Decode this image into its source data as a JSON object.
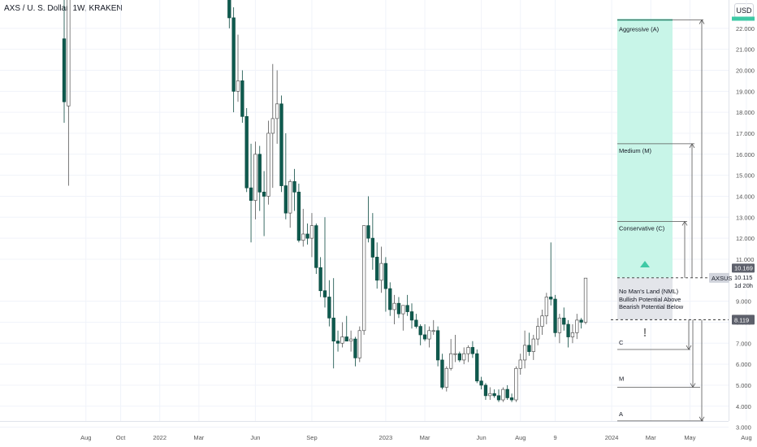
{
  "header": {
    "title": "AXS / U. S. Dollar, 1W, KRAKEN",
    "currency_button": "USD"
  },
  "chart_data": {
    "type": "candlestick",
    "symbol": "AXSUSD",
    "ylim": [
      3.0,
      22.5
    ],
    "y_ticks": [
      3,
      4,
      5,
      6,
      7,
      8,
      9,
      11,
      12,
      13,
      14,
      15,
      16,
      17,
      18,
      19,
      20,
      21,
      22
    ],
    "x_labels": [
      {
        "label": "Aug",
        "week": 2
      },
      {
        "label": "Oct",
        "week": 10
      },
      {
        "label": "2022",
        "week": 19
      },
      {
        "label": "Mar",
        "week": 28
      },
      {
        "label": "Jun",
        "week": 41
      },
      {
        "label": "Sep",
        "week": 54
      },
      {
        "label": "2023",
        "week": 71
      },
      {
        "label": "Mar",
        "week": 80
      },
      {
        "label": "Jun",
        "week": 93
      },
      {
        "label": "Aug",
        "week": 102
      },
      {
        "label": "9",
        "week": 110
      },
      {
        "label": "2024",
        "week": 123
      },
      {
        "label": "Mar",
        "week": 132
      },
      {
        "label": "May",
        "week": 141
      },
      {
        "label": "Aug",
        "week": 154
      }
    ],
    "candles": [
      {
        "w": -3,
        "o": 21.5,
        "h": 24,
        "l": 17.5,
        "c": 18.5
      },
      {
        "w": -2,
        "o": 18.3,
        "h": 25,
        "l": 14.5,
        "c": 24
      },
      {
        "w": 35,
        "o": 24,
        "h": 25,
        "l": 22,
        "c": 22.5
      },
      {
        "w": 36,
        "o": 22.5,
        "h": 23,
        "l": 18,
        "c": 19
      },
      {
        "w": 37,
        "o": 19,
        "h": 21.7,
        "l": 18.5,
        "c": 19.5
      },
      {
        "w": 38,
        "o": 19.5,
        "h": 20,
        "l": 17.5,
        "c": 17.8
      },
      {
        "w": 39,
        "o": 17.8,
        "h": 18.2,
        "l": 14.2,
        "c": 14.4
      },
      {
        "w": 40,
        "o": 14.4,
        "h": 16.5,
        "l": 11.8,
        "c": 13.8
      },
      {
        "w": 41,
        "o": 13.8,
        "h": 16.6,
        "l": 12.9,
        "c": 16
      },
      {
        "w": 42,
        "o": 16,
        "h": 16.4,
        "l": 13.3,
        "c": 14.2
      },
      {
        "w": 43,
        "o": 14.2,
        "h": 15.2,
        "l": 12.1,
        "c": 14
      },
      {
        "w": 44,
        "o": 14,
        "h": 17.6,
        "l": 13.6,
        "c": 17
      },
      {
        "w": 45,
        "o": 17,
        "h": 20.3,
        "l": 14.4,
        "c": 17.7
      },
      {
        "w": 46,
        "o": 17.7,
        "h": 20,
        "l": 16.5,
        "c": 18.4
      },
      {
        "w": 47,
        "o": 18.4,
        "h": 18.8,
        "l": 14.2,
        "c": 14.5
      },
      {
        "w": 48,
        "o": 14.5,
        "h": 17,
        "l": 12.9,
        "c": 13.2
      },
      {
        "w": 49,
        "o": 13.2,
        "h": 14.8,
        "l": 12.5,
        "c": 14.7
      },
      {
        "w": 50,
        "o": 14.7,
        "h": 15.3,
        "l": 13.3,
        "c": 14.2
      },
      {
        "w": 51,
        "o": 14.2,
        "h": 14.6,
        "l": 11.8,
        "c": 11.9
      },
      {
        "w": 52,
        "o": 11.9,
        "h": 13.4,
        "l": 11.6,
        "c": 12.2
      },
      {
        "w": 53,
        "o": 12.2,
        "h": 12.7,
        "l": 11.7,
        "c": 12
      },
      {
        "w": 54,
        "o": 12,
        "h": 13.2,
        "l": 11.1,
        "c": 12.6
      },
      {
        "w": 55,
        "o": 12.6,
        "h": 12.7,
        "l": 10.3,
        "c": 10.6
      },
      {
        "w": 56,
        "o": 10.6,
        "h": 11.1,
        "l": 9.2,
        "c": 9.5
      },
      {
        "w": 57,
        "o": 9.5,
        "h": 13,
        "l": 8.7,
        "c": 9.2
      },
      {
        "w": 58,
        "o": 9.2,
        "h": 10,
        "l": 7.8,
        "c": 8.2
      },
      {
        "w": 59,
        "o": 8.2,
        "h": 10.1,
        "l": 5.8,
        "c": 7.1
      },
      {
        "w": 60,
        "o": 7.1,
        "h": 7.6,
        "l": 6.6,
        "c": 7.0
      },
      {
        "w": 61,
        "o": 7.0,
        "h": 8,
        "l": 6.8,
        "c": 7.3
      },
      {
        "w": 62,
        "o": 7.3,
        "h": 8.3,
        "l": 7.1,
        "c": 7.1
      },
      {
        "w": 63,
        "o": 7.1,
        "h": 7.6,
        "l": 6.6,
        "c": 7.2
      },
      {
        "w": 64,
        "o": 7.2,
        "h": 7.3,
        "l": 5.9,
        "c": 6.3
      },
      {
        "w": 65,
        "o": 6.3,
        "h": 7.8,
        "l": 6.1,
        "c": 7.6
      },
      {
        "w": 66,
        "o": 7.6,
        "h": 12.5,
        "l": 7.4,
        "c": 12.6
      },
      {
        "w": 67,
        "o": 12.6,
        "h": 14,
        "l": 11.8,
        "c": 12.0
      },
      {
        "w": 68,
        "o": 12.0,
        "h": 13.2,
        "l": 10.5,
        "c": 11.1
      },
      {
        "w": 69,
        "o": 11.1,
        "h": 11.8,
        "l": 9.6,
        "c": 10.0
      },
      {
        "w": 70,
        "o": 10.0,
        "h": 11.6,
        "l": 9.4,
        "c": 10.8
      },
      {
        "w": 71,
        "o": 10.8,
        "h": 11.1,
        "l": 8.5,
        "c": 9.6
      },
      {
        "w": 72,
        "o": 9.6,
        "h": 9.9,
        "l": 8.3,
        "c": 8.6
      },
      {
        "w": 73,
        "o": 8.6,
        "h": 9.3,
        "l": 7.9,
        "c": 8.9
      },
      {
        "w": 74,
        "o": 8.9,
        "h": 9.2,
        "l": 8.2,
        "c": 8.4
      },
      {
        "w": 75,
        "o": 8.4,
        "h": 8.8,
        "l": 7.6,
        "c": 8.8
      },
      {
        "w": 76,
        "o": 8.8,
        "h": 9.3,
        "l": 8.3,
        "c": 8.5
      },
      {
        "w": 77,
        "o": 8.5,
        "h": 8.9,
        "l": 7.7,
        "c": 8.1
      },
      {
        "w": 78,
        "o": 8.1,
        "h": 8.4,
        "l": 7.7,
        "c": 7.8
      },
      {
        "w": 79,
        "o": 7.8,
        "h": 7.9,
        "l": 6.9,
        "c": 7.4
      },
      {
        "w": 80,
        "o": 7.4,
        "h": 7.9,
        "l": 7.1,
        "c": 7.2
      },
      {
        "w": 81,
        "o": 7.2,
        "h": 7.8,
        "l": 6.8,
        "c": 7.6
      },
      {
        "w": 82,
        "o": 7.6,
        "h": 8.1,
        "l": 7.4,
        "c": 7.6
      },
      {
        "w": 83,
        "o": 7.6,
        "h": 7.8,
        "l": 5.9,
        "c": 6.2
      },
      {
        "w": 84,
        "o": 6.2,
        "h": 6.5,
        "l": 4.8,
        "c": 4.9
      },
      {
        "w": 85,
        "o": 4.9,
        "h": 5.9,
        "l": 4.7,
        "c": 5.8
      },
      {
        "w": 86,
        "o": 5.8,
        "h": 7.2,
        "l": 5.7,
        "c": 6.5
      },
      {
        "w": 87,
        "o": 6.5,
        "h": 7.4,
        "l": 6.1,
        "c": 6.5
      },
      {
        "w": 88,
        "o": 6.5,
        "h": 6.6,
        "l": 6.1,
        "c": 6.2
      },
      {
        "w": 89,
        "o": 6.2,
        "h": 6.8,
        "l": 6.0,
        "c": 6.5
      },
      {
        "w": 90,
        "o": 6.5,
        "h": 6.9,
        "l": 6.1,
        "c": 6.8
      },
      {
        "w": 91,
        "o": 6.8,
        "h": 7.1,
        "l": 6.3,
        "c": 6.5
      },
      {
        "w": 92,
        "o": 6.5,
        "h": 6.7,
        "l": 5.1,
        "c": 5.2
      },
      {
        "w": 93,
        "o": 5.2,
        "h": 5.4,
        "l": 4.8,
        "c": 5.0
      },
      {
        "w": 94,
        "o": 5.0,
        "h": 5.1,
        "l": 4.3,
        "c": 4.5
      },
      {
        "w": 95,
        "o": 4.5,
        "h": 4.9,
        "l": 4.3,
        "c": 4.6
      },
      {
        "w": 96,
        "o": 4.6,
        "h": 4.8,
        "l": 4.4,
        "c": 4.5
      },
      {
        "w": 97,
        "o": 4.5,
        "h": 4.8,
        "l": 4.2,
        "c": 4.3
      },
      {
        "w": 98,
        "o": 4.3,
        "h": 4.9,
        "l": 4.2,
        "c": 4.8
      },
      {
        "w": 99,
        "o": 4.8,
        "h": 5.0,
        "l": 4.3,
        "c": 4.4
      },
      {
        "w": 100,
        "o": 4.4,
        "h": 4.6,
        "l": 4.2,
        "c": 4.3
      },
      {
        "w": 101,
        "o": 4.3,
        "h": 5.9,
        "l": 4.2,
        "c": 5.8
      },
      {
        "w": 102,
        "o": 5.8,
        "h": 6.5,
        "l": 5.5,
        "c": 6.2
      },
      {
        "w": 103,
        "o": 6.2,
        "h": 7.6,
        "l": 5.8,
        "c": 6.9
      },
      {
        "w": 104,
        "o": 6.9,
        "h": 7.5,
        "l": 6.4,
        "c": 6.6
      },
      {
        "w": 105,
        "o": 6.6,
        "h": 7.4,
        "l": 6.2,
        "c": 7.2
      },
      {
        "w": 106,
        "o": 7.2,
        "h": 8.2,
        "l": 6.9,
        "c": 7.8
      },
      {
        "w": 107,
        "o": 7.8,
        "h": 8.6,
        "l": 7.4,
        "c": 8.3
      },
      {
        "w": 108,
        "o": 8.3,
        "h": 9.4,
        "l": 7.9,
        "c": 9.2
      },
      {
        "w": 109,
        "o": 9.2,
        "h": 11.8,
        "l": 8.8,
        "c": 9.1
      },
      {
        "w": 110,
        "o": 9.1,
        "h": 9.3,
        "l": 7.3,
        "c": 7.5
      },
      {
        "w": 111,
        "o": 7.5,
        "h": 8.4,
        "l": 7.0,
        "c": 8.2
      },
      {
        "w": 112,
        "o": 8.2,
        "h": 8.7,
        "l": 7.6,
        "c": 7.9
      },
      {
        "w": 113,
        "o": 7.9,
        "h": 8.1,
        "l": 6.8,
        "c": 7.3
      },
      {
        "w": 114,
        "o": 7.3,
        "h": 7.9,
        "l": 7.0,
        "c": 7.5
      },
      {
        "w": 115,
        "o": 7.5,
        "h": 8.4,
        "l": 7.2,
        "c": 8.1
      },
      {
        "w": 116,
        "o": 8.1,
        "h": 8.2,
        "l": 7.7,
        "c": 8.0
      },
      {
        "w": 117,
        "o": 8.0,
        "h": 10.1,
        "l": 7.9,
        "c": 10.1
      }
    ],
    "levels": {
      "aggressive_top": 22.4,
      "medium": 16.5,
      "conservative": 12.8,
      "nml_top": 10.115,
      "nml_bottom": 8.119,
      "c_target": 6.7,
      "m_target": 4.9,
      "a_target": 3.3
    },
    "annotations": {
      "aggressive": "Aggressive (A)",
      "medium": "Medium (M)",
      "conservative": "Conservative (C)",
      "nml_line1": "No Man's Land (NML)",
      "nml_line2": "Bullish Potential Above",
      "nml_line3": "Bearish Potential Below",
      "c": "C",
      "m": "M",
      "a": "A",
      "exclaim": "!"
    },
    "price_tags": {
      "symbol_tag": "AXSUSD",
      "last": "10.169",
      "current": "10.115",
      "countdown": "1d 20h",
      "support": "8.119"
    },
    "colors": {
      "bull_fill": "#ffffff",
      "bull_border": "#555555",
      "bear_fill": "#0f5b4f",
      "bear_border": "#0b4a40",
      "zone": "#c8f5e8",
      "zone_border": "#3ec9a5",
      "up_marker": "#3ec9a5",
      "down_marker": "#888888",
      "grid": "#f0f3fa",
      "axis_text": "#131722",
      "tag_dark": "#5d606b",
      "tag_light": "#d1d4dc"
    }
  }
}
